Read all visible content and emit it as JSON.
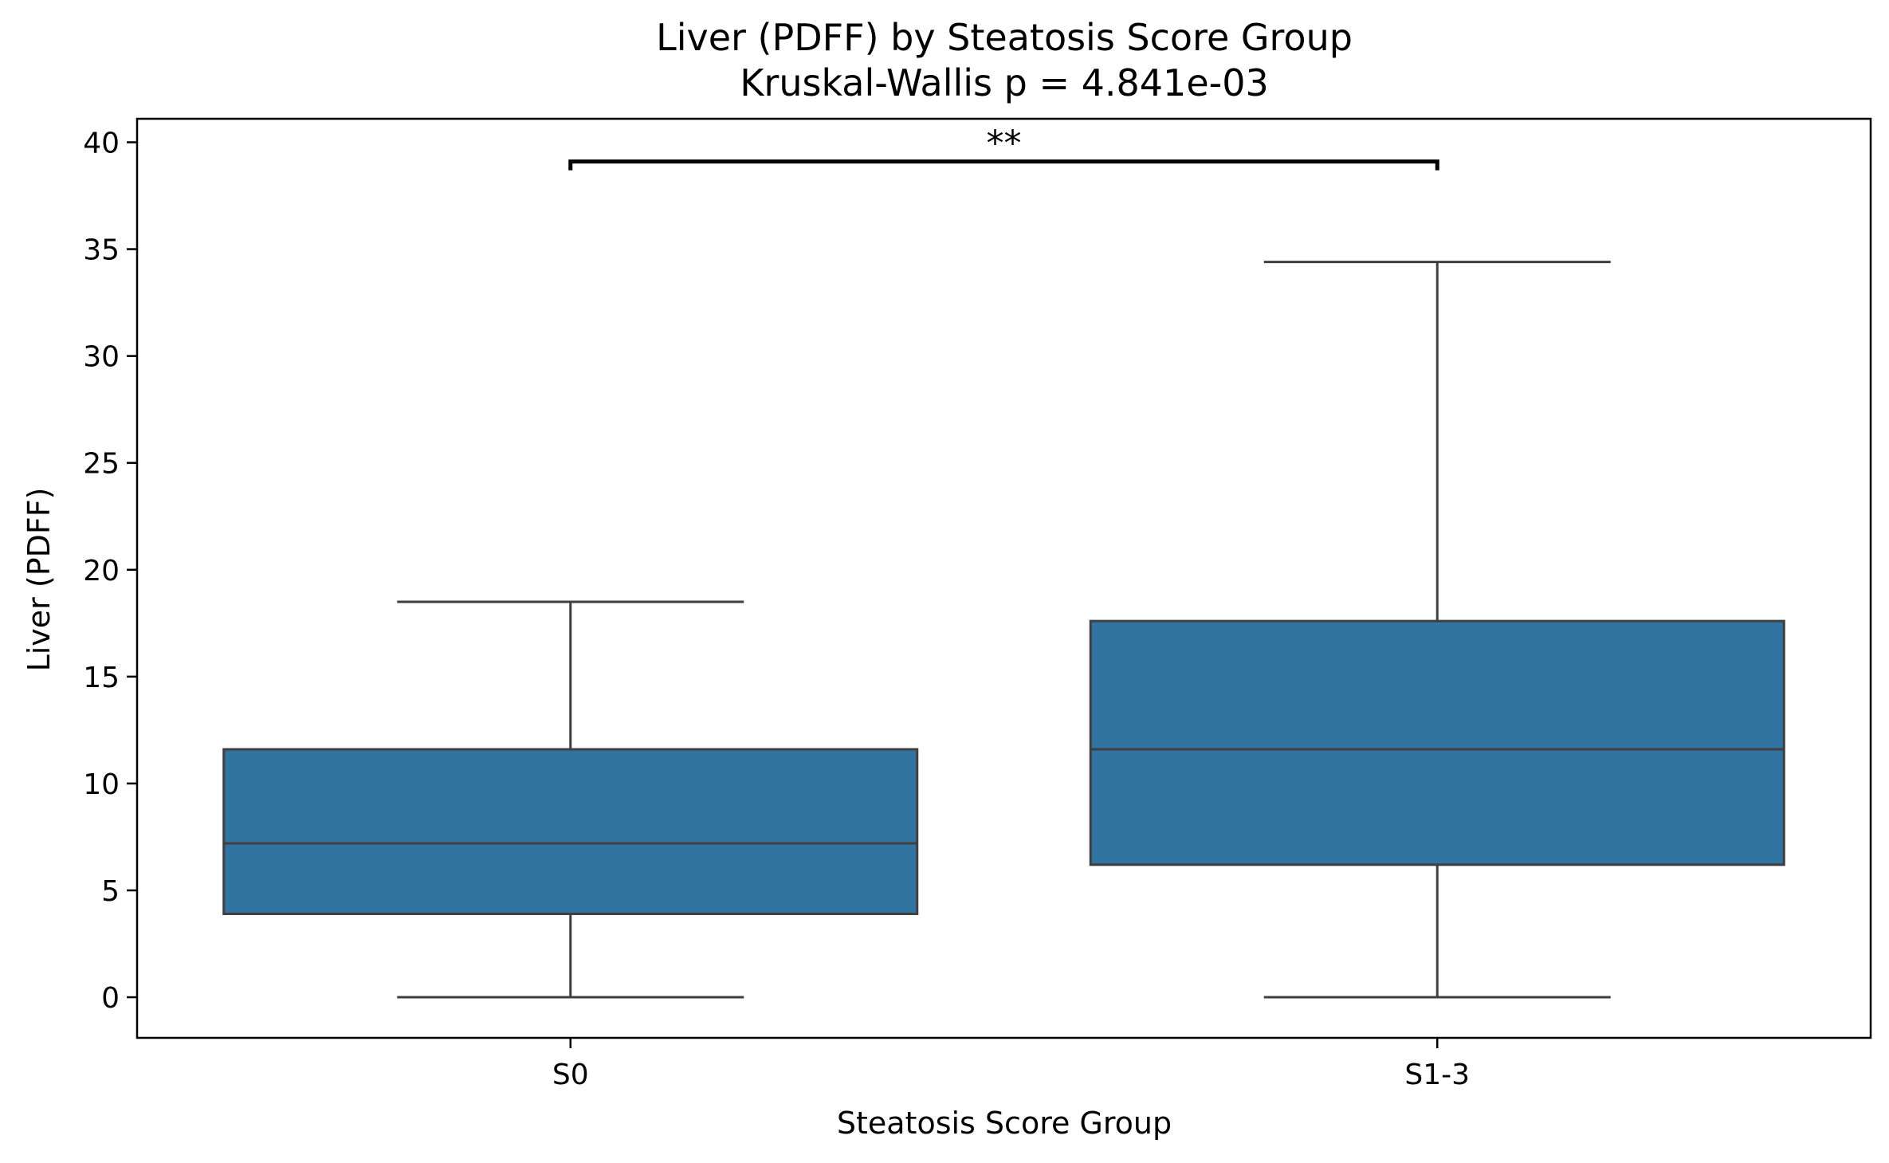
{
  "chart_data": {
    "type": "box",
    "title": "Liver (PDFF) by Steatosis Score Group",
    "subtitle": "Kruskal-Wallis p = 4.841e-03",
    "xlabel": "Steatosis Score Group",
    "ylabel": "Liver (PDFF)",
    "ylim": [
      -1.9,
      41.1
    ],
    "yticks": [
      0,
      5,
      10,
      15,
      20,
      25,
      30,
      35,
      40
    ],
    "categories": [
      "S0",
      "S1-3"
    ],
    "boxes": [
      {
        "category": "S0",
        "whisker_low": 0.0,
        "q1": 3.9,
        "median": 7.2,
        "q3": 11.6,
        "whisker_high": 18.5
      },
      {
        "category": "S1-3",
        "whisker_low": 0.0,
        "q1": 6.2,
        "median": 11.6,
        "q3": 17.6,
        "whisker_high": 34.4
      }
    ],
    "significance": {
      "from": "S0",
      "to": "S1-3",
      "label": "**",
      "y": 39.1
    },
    "grid": false,
    "colors": {
      "box_fill": "#3274a1",
      "line": "#3f3f3f",
      "axes": "#000000"
    }
  }
}
